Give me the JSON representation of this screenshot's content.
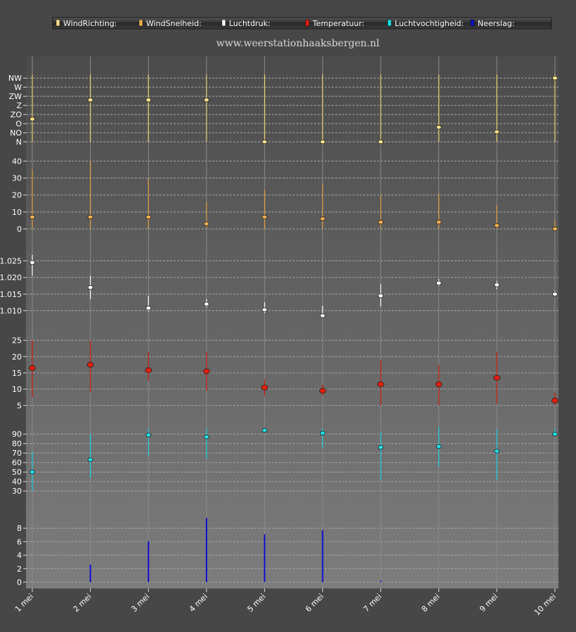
{
  "site_title": "www.weerstationhaaksbergen.nl",
  "chart_data": {
    "type": "scatter",
    "x_categories": [
      "1 mei",
      "2 mei",
      "3 mei",
      "4 mei",
      "5 mei",
      "6 mei",
      "7 mei",
      "8 mei",
      "9 mei",
      "10 mei"
    ],
    "legend": [
      {
        "name": "WindRichting:",
        "color": "#f5e08a"
      },
      {
        "name": "WindSnelheid:",
        "color": "#f0b050"
      },
      {
        "name": "Luchtdruk:",
        "color": "#ffffff"
      },
      {
        "name": "Temperatuur:",
        "color": "#e02010"
      },
      {
        "name": "Luchtvochtigheid:",
        "color": "#20e0e8"
      },
      {
        "name": "Neerslag:",
        "color": "#1010c0"
      }
    ],
    "panels": [
      {
        "id": "windrichting",
        "color": "#f5e08a",
        "line_color": "#e8d070",
        "ticks": [
          {
            "v": 0,
            "label": "N"
          },
          {
            "v": 1,
            "label": "NO"
          },
          {
            "v": 2,
            "label": "O"
          },
          {
            "v": 3,
            "label": "ZO"
          },
          {
            "v": 4,
            "label": "Z"
          },
          {
            "v": 5,
            "label": "ZW"
          },
          {
            "v": 6,
            "label": "W"
          },
          {
            "v": 7,
            "label": "NW"
          }
        ],
        "range": [
          0,
          7.4
        ],
        "values": [
          2.5,
          4.6,
          4.6,
          4.6,
          0,
          0,
          0,
          1.6,
          1.1,
          7.0
        ],
        "lows": [
          0,
          0,
          0,
          0,
          0,
          0,
          0,
          0,
          0,
          0
        ],
        "highs": [
          8,
          8,
          8,
          8,
          8,
          8,
          8,
          8,
          8,
          8
        ]
      },
      {
        "id": "windsnelheid",
        "color": "#f0b050",
        "line_color": "#e0a040",
        "ticks": [
          {
            "v": 0,
            "label": "0"
          },
          {
            "v": 10,
            "label": "10"
          },
          {
            "v": 20,
            "label": "20"
          },
          {
            "v": 30,
            "label": "30"
          },
          {
            "v": 40,
            "label": "40"
          }
        ],
        "range": [
          0,
          41
        ],
        "values": [
          7,
          7,
          7,
          3,
          7,
          6,
          4,
          4,
          2,
          0
        ],
        "lows": [
          0,
          0,
          0,
          0,
          0,
          0,
          0,
          0,
          0,
          0
        ],
        "highs": [
          35,
          40,
          30,
          16,
          23,
          27,
          20,
          21,
          14,
          5
        ]
      },
      {
        "id": "luchtdruk",
        "color": "#ffffff",
        "line_color": "#ffffff",
        "ticks": [
          {
            "v": 1.01,
            "label": "1.010"
          },
          {
            "v": 1.015,
            "label": "1.015"
          },
          {
            "v": 1.02,
            "label": "1.020"
          },
          {
            "v": 1.025,
            "label": "1.025"
          }
        ],
        "range": [
          1.008,
          1.027
        ],
        "values": [
          1.0245,
          1.017,
          1.0108,
          1.012,
          1.0103,
          1.0085,
          1.0145,
          1.0183,
          1.0178,
          1.015
        ],
        "lows": [
          1.0205,
          1.0135,
          1.0098,
          1.011,
          1.0093,
          1.0075,
          1.0113,
          1.0175,
          1.0165,
          1.0148
        ],
        "highs": [
          1.0268,
          1.0205,
          1.0145,
          1.0135,
          1.0125,
          1.0115,
          1.018,
          1.0195,
          1.019,
          1.016
        ]
      },
      {
        "id": "temperatuur",
        "color": "#e02010",
        "line_color": "#d02010",
        "ticks": [
          {
            "v": 5,
            "label": "5"
          },
          {
            "v": 10,
            "label": "10"
          },
          {
            "v": 15,
            "label": "15"
          },
          {
            "v": 20,
            "label": "20"
          },
          {
            "v": 25,
            "label": "25"
          }
        ],
        "range": [
          4,
          26
        ],
        "values": [
          16.5,
          17.5,
          15.8,
          15.5,
          10.5,
          9.5,
          11.5,
          11.5,
          13.5,
          6.5
        ],
        "lows": [
          7.5,
          9,
          12.5,
          9.5,
          8,
          8,
          5,
          5,
          5.5,
          5
        ],
        "highs": [
          25,
          25,
          21.5,
          21.5,
          13,
          11.5,
          19,
          17.5,
          21.5,
          9
        ]
      },
      {
        "id": "luchtvochtigheid",
        "color": "#20e0e8",
        "line_color": "#20d0e0",
        "ticks": [
          {
            "v": 30,
            "label": "30"
          },
          {
            "v": 40,
            "label": "40"
          },
          {
            "v": 50,
            "label": "50"
          },
          {
            "v": 60,
            "label": "60"
          },
          {
            "v": 70,
            "label": "70"
          },
          {
            "v": 80,
            "label": "80"
          },
          {
            "v": 90,
            "label": "90"
          }
        ],
        "range": [
          25,
          99
        ],
        "values": [
          50,
          63,
          89,
          87,
          94,
          91,
          76,
          77,
          72,
          90
        ],
        "lows": [
          30,
          44,
          67,
          64,
          92,
          76,
          42,
          56,
          42,
          88
        ],
        "highs": [
          72,
          90,
          96,
          96,
          96,
          96,
          92,
          98,
          95,
          96
        ]
      },
      {
        "id": "neerslag",
        "color": "#1010c0",
        "line_color": "#1010d0",
        "ticks": [
          {
            "v": 0,
            "label": "0"
          },
          {
            "v": 2,
            "label": "2"
          },
          {
            "v": 4,
            "label": "4"
          },
          {
            "v": 6,
            "label": "6"
          },
          {
            "v": 8,
            "label": "8"
          }
        ],
        "range": [
          0,
          10
        ],
        "values": [
          0,
          2.6,
          6.1,
          9.5,
          7.1,
          7.7,
          0.2,
          0,
          0,
          0
        ],
        "bars": true
      }
    ]
  }
}
